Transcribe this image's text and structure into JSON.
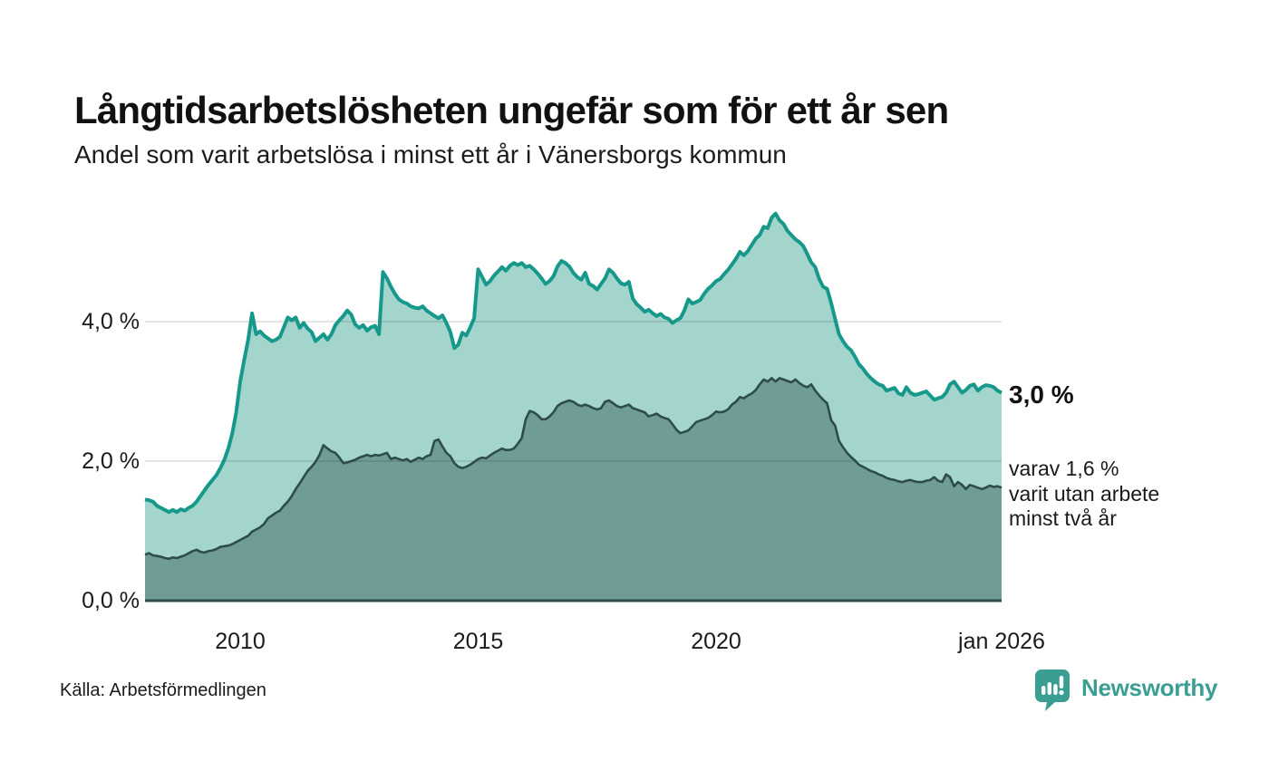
{
  "header": {
    "title": "Långtidsarbetslösheten ungefär som för ett år sen",
    "subtitle": "Andel som varit arbetslösa i minst ett år i Vänersborgs kommun"
  },
  "annotations": {
    "latest_main": "3,0 %",
    "latest_secondary": "varav 1,6 %\nvarit utan arbete\nminst två år"
  },
  "footer": {
    "source": "Källa: Arbetsförmedlingen",
    "brand_name": "Newsworthy"
  },
  "colors": {
    "line_1yr": "#16998b",
    "fill_1yr": "#a3d5cd",
    "line_2yr": "#2e4d47",
    "fill_2yr": "#6f9d95",
    "gridline": "rgba(0,0,0,0.14)",
    "baseline": "#2e4d47",
    "brand_teal": "#3b9e93",
    "text": "#1a1a1a"
  },
  "chart_data": {
    "type": "area",
    "title": "Långtidsarbetslösheten ungefär som för ett år sen",
    "subtitle": "Andel som varit arbetslösa i minst ett år i Vänersborgs kommun",
    "unit": "%",
    "x_start_year": 2008,
    "x_end_label_year": 2026,
    "step_months": 1,
    "ylim": [
      0,
      5.8
    ],
    "grid": true,
    "y_gridlines": [
      2,
      4
    ],
    "y_ticks": [
      {
        "value": 0,
        "label": "0,0 %"
      },
      {
        "value": 2,
        "label": "2,0 %"
      },
      {
        "value": 4,
        "label": "4,0 %"
      }
    ],
    "x_ticks": [
      {
        "year": 2010,
        "label": "2010"
      },
      {
        "year": 2015,
        "label": "2015"
      },
      {
        "year": 2020,
        "label": "2020"
      },
      {
        "year": 2026,
        "label": "jan 2026"
      }
    ],
    "series": [
      {
        "name": "Arbetslösa minst ett år",
        "latest_value_label": "3,0 %",
        "values": [
          1.45,
          1.44,
          1.42,
          1.36,
          1.33,
          1.3,
          1.27,
          1.3,
          1.27,
          1.31,
          1.29,
          1.33,
          1.36,
          1.42,
          1.5,
          1.58,
          1.66,
          1.73,
          1.8,
          1.9,
          2.02,
          2.18,
          2.4,
          2.7,
          3.14,
          3.45,
          3.74,
          4.12,
          3.82,
          3.86,
          3.8,
          3.76,
          3.72,
          3.74,
          3.78,
          3.92,
          4.06,
          4.02,
          4.06,
          3.91,
          3.98,
          3.9,
          3.85,
          3.72,
          3.77,
          3.82,
          3.74,
          3.82,
          3.95,
          4.02,
          4.08,
          4.16,
          4.1,
          3.96,
          3.91,
          3.95,
          3.87,
          3.92,
          3.94,
          3.82,
          4.71,
          4.62,
          4.5,
          4.4,
          4.32,
          4.28,
          4.26,
          4.22,
          4.2,
          4.19,
          4.22,
          4.16,
          4.12,
          4.08,
          4.05,
          4.09,
          3.98,
          3.85,
          3.62,
          3.67,
          3.84,
          3.8,
          3.92,
          4.05,
          4.75,
          4.64,
          4.53,
          4.58,
          4.66,
          4.72,
          4.78,
          4.73,
          4.8,
          4.84,
          4.81,
          4.84,
          4.78,
          4.8,
          4.75,
          4.69,
          4.62,
          4.54,
          4.58,
          4.65,
          4.79,
          4.87,
          4.84,
          4.79,
          4.7,
          4.64,
          4.6,
          4.7,
          4.54,
          4.51,
          4.46,
          4.54,
          4.62,
          4.75,
          4.7,
          4.62,
          4.55,
          4.53,
          4.57,
          4.33,
          4.25,
          4.2,
          4.14,
          4.17,
          4.12,
          4.08,
          4.11,
          4.06,
          4.04,
          3.98,
          4.02,
          4.05,
          4.16,
          4.32,
          4.26,
          4.28,
          4.31,
          4.4,
          4.47,
          4.52,
          4.58,
          4.61,
          4.68,
          4.74,
          4.82,
          4.9,
          5.0,
          4.95,
          5.01,
          5.1,
          5.19,
          5.24,
          5.36,
          5.34,
          5.49,
          5.55,
          5.45,
          5.4,
          5.3,
          5.24,
          5.18,
          5.14,
          5.08,
          4.97,
          4.85,
          4.78,
          4.61,
          4.5,
          4.47,
          4.27,
          4.04,
          3.82,
          3.72,
          3.64,
          3.59,
          3.5,
          3.39,
          3.33,
          3.25,
          3.19,
          3.14,
          3.1,
          3.08,
          3.01,
          3.03,
          3.05,
          2.97,
          2.95,
          3.06,
          2.98,
          2.95,
          2.96,
          2.98,
          3.0,
          2.94,
          2.88,
          2.9,
          2.92,
          2.98,
          3.1,
          3.14,
          3.06,
          2.98,
          3.02,
          3.08,
          3.1,
          3.01,
          3.06,
          3.09,
          3.08,
          3.06,
          3.01,
          2.98
        ]
      },
      {
        "name": "varav arbetslösa minst två år",
        "latest_value_label": "1,6 %",
        "values": [
          0.66,
          0.68,
          0.65,
          0.64,
          0.63,
          0.61,
          0.6,
          0.62,
          0.61,
          0.63,
          0.65,
          0.68,
          0.71,
          0.73,
          0.7,
          0.69,
          0.71,
          0.72,
          0.74,
          0.77,
          0.78,
          0.79,
          0.81,
          0.84,
          0.87,
          0.9,
          0.93,
          0.99,
          1.02,
          1.05,
          1.1,
          1.18,
          1.22,
          1.26,
          1.29,
          1.36,
          1.42,
          1.5,
          1.6,
          1.68,
          1.77,
          1.86,
          1.92,
          1.99,
          2.09,
          2.23,
          2.18,
          2.14,
          2.12,
          2.05,
          1.97,
          1.98,
          2.0,
          2.02,
          2.05,
          2.07,
          2.09,
          2.07,
          2.09,
          2.08,
          2.1,
          2.12,
          2.03,
          2.05,
          2.03,
          2.01,
          2.03,
          1.99,
          2.02,
          2.05,
          2.03,
          2.07,
          2.09,
          2.29,
          2.31,
          2.21,
          2.12,
          2.07,
          1.97,
          1.92,
          1.9,
          1.92,
          1.95,
          1.99,
          2.03,
          2.05,
          2.04,
          2.08,
          2.12,
          2.15,
          2.18,
          2.16,
          2.16,
          2.18,
          2.25,
          2.33,
          2.6,
          2.72,
          2.7,
          2.66,
          2.6,
          2.6,
          2.64,
          2.7,
          2.79,
          2.83,
          2.85,
          2.87,
          2.85,
          2.81,
          2.79,
          2.81,
          2.79,
          2.76,
          2.74,
          2.76,
          2.85,
          2.87,
          2.83,
          2.79,
          2.77,
          2.79,
          2.81,
          2.76,
          2.74,
          2.72,
          2.7,
          2.64,
          2.66,
          2.68,
          2.64,
          2.62,
          2.6,
          2.53,
          2.45,
          2.4,
          2.42,
          2.44,
          2.5,
          2.56,
          2.58,
          2.6,
          2.62,
          2.66,
          2.71,
          2.7,
          2.71,
          2.74,
          2.81,
          2.85,
          2.92,
          2.9,
          2.94,
          2.97,
          3.02,
          3.1,
          3.17,
          3.14,
          3.19,
          3.14,
          3.19,
          3.17,
          3.15,
          3.13,
          3.17,
          3.12,
          3.08,
          3.06,
          3.1,
          3.01,
          2.94,
          2.88,
          2.83,
          2.59,
          2.51,
          2.29,
          2.2,
          2.12,
          2.06,
          2.01,
          1.95,
          1.92,
          1.89,
          1.86,
          1.84,
          1.81,
          1.79,
          1.76,
          1.74,
          1.73,
          1.71,
          1.7,
          1.72,
          1.73,
          1.71,
          1.7,
          1.7,
          1.72,
          1.73,
          1.77,
          1.72,
          1.7,
          1.81,
          1.77,
          1.64,
          1.7,
          1.66,
          1.6,
          1.66,
          1.64,
          1.62,
          1.6,
          1.62,
          1.65,
          1.63,
          1.64,
          1.62
        ]
      }
    ]
  }
}
